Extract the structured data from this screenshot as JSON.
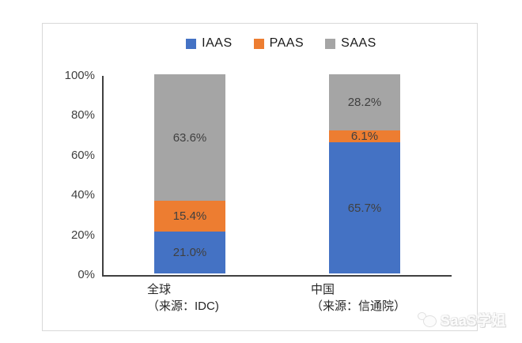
{
  "watermark": {
    "text": "SaaS学姐",
    "icon": "chat-bubble-face-icon"
  },
  "chart_data": {
    "type": "bar",
    "stacked": true,
    "title": "",
    "xlabel": "",
    "ylabel": "",
    "categories": [
      {
        "name": "全球",
        "source": "（来源：IDC)"
      },
      {
        "name": "中国",
        "source": "（来源：信通院）"
      }
    ],
    "series": [
      {
        "name": "IAAS",
        "color": "#4472C4",
        "values": [
          21.0,
          65.7
        ]
      },
      {
        "name": "PAAS",
        "color": "#ED7D31",
        "values": [
          15.4,
          6.1
        ]
      },
      {
        "name": "SAAS",
        "color": "#A5A5A5",
        "values": [
          63.6,
          28.2
        ]
      }
    ],
    "value_labels": [
      [
        "21.0%",
        "15.4%",
        "63.6%"
      ],
      [
        "65.7%",
        "6.1%",
        "28.2%"
      ]
    ],
    "y_ticks": [
      "0%",
      "20%",
      "40%",
      "60%",
      "80%",
      "100%"
    ],
    "ylim": [
      0,
      100
    ],
    "grid": false,
    "legend_position": "top"
  }
}
